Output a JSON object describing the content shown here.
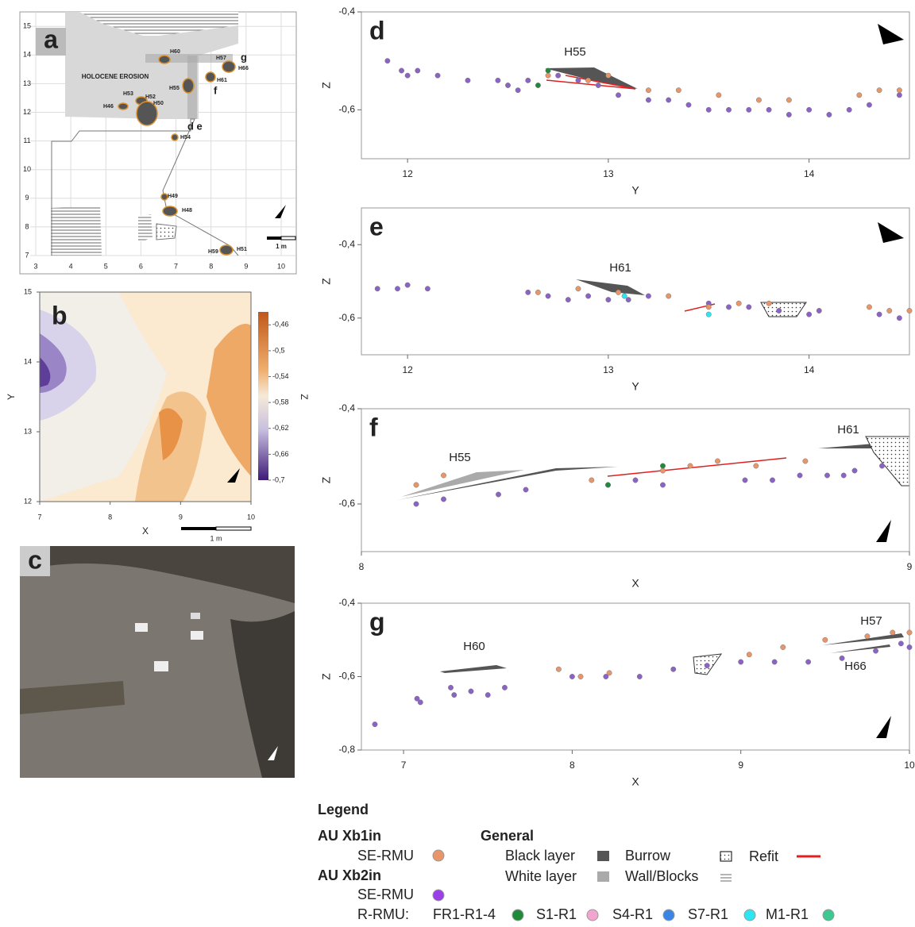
{
  "panel_a": {
    "label": "a",
    "xticks": [
      3,
      4,
      5,
      6,
      7,
      8,
      9,
      10
    ],
    "yticks": [
      7,
      8,
      9,
      10,
      11,
      12,
      13,
      14,
      15
    ],
    "erosion": "HOLOCENE EROSION",
    "features": [
      "H60",
      "H57",
      "H66",
      "H61",
      "H55",
      "H53",
      "H52",
      "H50",
      "H46",
      "H54",
      "H49",
      "H48",
      "H59",
      "H51"
    ],
    "sections": [
      "g",
      "f",
      "d e"
    ],
    "scale": "1 m"
  },
  "panel_b": {
    "label": "b",
    "xlabel": "X",
    "ylabel": "Y",
    "xticks": [
      7,
      8,
      9,
      10
    ],
    "yticks": [
      12,
      13,
      14,
      15
    ],
    "colorbar_label": "Z",
    "colorbar_lim": [
      -0.7,
      -0.44
    ],
    "colorbar_ticks": [
      {
        "value": -0.46,
        "label": "-0,46"
      },
      {
        "value": -0.5,
        "label": "-0,5"
      },
      {
        "value": -0.54,
        "label": "-0,54"
      },
      {
        "value": -0.58,
        "label": "-0,58"
      },
      {
        "value": -0.62,
        "label": "-0,62"
      },
      {
        "value": -0.66,
        "label": "-0,66"
      },
      {
        "value": -0.7,
        "label": "-0,7"
      }
    ],
    "scale": "1 m"
  },
  "panel_c": {
    "label": "c"
  },
  "chart_data": [
    {
      "type": "scatter",
      "panel": "d",
      "xlabel": "Y",
      "ylabel": "Z",
      "annotations": [
        "H55"
      ],
      "xlim": [
        11.77,
        14.5
      ],
      "ylim": [
        -0.7,
        -0.4
      ],
      "xticks": [
        12,
        13,
        14
      ],
      "yticks": [
        {
          "value": -0.4,
          "label": "-0,4"
        },
        {
          "value": -0.6,
          "label": "-0,6"
        }
      ],
      "series": [
        {
          "color": "#8a63c4",
          "x": [
            11.9,
            11.97,
            12.0,
            12.05,
            12.15,
            12.3,
            12.45,
            12.5,
            12.55,
            12.6,
            12.75,
            12.85,
            12.95,
            13.05,
            13.2,
            13.3,
            13.4,
            13.5,
            13.6,
            13.7,
            13.8,
            13.9,
            14.0,
            14.1,
            14.2,
            14.3,
            14.45
          ],
          "values": [
            -0.5,
            -0.52,
            -0.53,
            -0.52,
            -0.53,
            -0.54,
            -0.54,
            -0.55,
            -0.56,
            -0.54,
            -0.53,
            -0.54,
            -0.55,
            -0.57,
            -0.58,
            -0.58,
            -0.59,
            -0.6,
            -0.6,
            -0.6,
            -0.6,
            -0.61,
            -0.6,
            -0.61,
            -0.6,
            -0.59,
            -0.57
          ]
        },
        {
          "color": "#e8956a",
          "x": [
            12.7,
            12.9,
            13.0,
            13.2,
            13.35,
            13.55,
            13.75,
            13.9,
            14.25,
            14.35,
            14.45
          ],
          "values": [
            -0.53,
            -0.54,
            -0.53,
            -0.56,
            -0.56,
            -0.57,
            -0.58,
            -0.58,
            -0.57,
            -0.56,
            -0.56
          ]
        },
        {
          "color": "#1f8a3a",
          "x": [
            12.65,
            12.7
          ],
          "values": [
            -0.55,
            -0.52
          ]
        }
      ]
    },
    {
      "type": "scatter",
      "panel": "e",
      "xlabel": "Y",
      "ylabel": "Z",
      "annotations": [
        "H61"
      ],
      "xlim": [
        11.77,
        14.5
      ],
      "ylim": [
        -0.7,
        -0.3
      ],
      "xticks": [
        12,
        13,
        14
      ],
      "yticks": [
        {
          "value": -0.4,
          "label": "-0,4"
        },
        {
          "value": -0.6,
          "label": "-0,6"
        }
      ],
      "series": [
        {
          "color": "#8a63c4",
          "x": [
            11.85,
            11.95,
            12.0,
            12.1,
            12.6,
            12.7,
            12.8,
            12.9,
            13.0,
            13.1,
            13.2,
            13.5,
            13.6,
            13.7,
            13.85,
            14.0,
            14.05,
            14.35,
            14.45
          ],
          "values": [
            -0.52,
            -0.52,
            -0.51,
            -0.52,
            -0.53,
            -0.54,
            -0.55,
            -0.54,
            -0.55,
            -0.55,
            -0.54,
            -0.56,
            -0.57,
            -0.57,
            -0.58,
            -0.59,
            -0.58,
            -0.59,
            -0.6
          ]
        },
        {
          "color": "#e8956a",
          "x": [
            12.65,
            12.85,
            13.05,
            13.3,
            13.5,
            13.65,
            13.8,
            14.3,
            14.4,
            14.5
          ],
          "values": [
            -0.53,
            -0.52,
            -0.53,
            -0.54,
            -0.57,
            -0.56,
            -0.56,
            -0.57,
            -0.58,
            -0.58
          ]
        },
        {
          "color": "#2ee6f2",
          "x": [
            13.08,
            13.5
          ],
          "values": [
            -0.54,
            -0.59
          ]
        }
      ]
    },
    {
      "type": "scatter",
      "panel": "f",
      "xlabel": "X",
      "ylabel": "Z",
      "annotations": [
        "H55",
        "H61"
      ],
      "xlim": [
        8,
        9
      ],
      "ylim": [
        -0.7,
        -0.4
      ],
      "xticks": [
        8,
        9
      ],
      "yticks": [
        {
          "value": -0.4,
          "label": "-0,4"
        },
        {
          "value": -0.6,
          "label": "-0,6"
        }
      ],
      "series": [
        {
          "color": "#8a63c4",
          "x": [
            8.1,
            8.15,
            8.25,
            8.3,
            8.45,
            8.5,
            8.55,
            8.7,
            8.75,
            8.8,
            8.85,
            8.88,
            8.9,
            8.95
          ],
          "values": [
            -0.6,
            -0.59,
            -0.58,
            -0.57,
            -0.56,
            -0.55,
            -0.56,
            -0.55,
            -0.55,
            -0.54,
            -0.54,
            -0.54,
            -0.53,
            -0.52
          ]
        },
        {
          "color": "#e8956a",
          "x": [
            8.1,
            8.15,
            8.42,
            8.55,
            8.6,
            8.65,
            8.72,
            8.81
          ],
          "values": [
            -0.56,
            -0.54,
            -0.55,
            -0.53,
            -0.52,
            -0.51,
            -0.52,
            -0.51
          ]
        },
        {
          "color": "#1f8a3a",
          "x": [
            8.45,
            8.55
          ],
          "values": [
            -0.56,
            -0.52
          ]
        }
      ]
    },
    {
      "type": "scatter",
      "panel": "g",
      "xlabel": "X",
      "ylabel": "Z",
      "annotations": [
        "H60",
        "H57",
        "H66"
      ],
      "xlim": [
        6.75,
        10
      ],
      "ylim": [
        -0.8,
        -0.4
      ],
      "xticks": [
        7,
        8,
        9,
        10
      ],
      "yticks": [
        {
          "value": -0.4,
          "label": "-0,4"
        },
        {
          "value": -0.6,
          "label": "-0,6"
        },
        {
          "value": -0.8,
          "label": "-0,8"
        }
      ],
      "series": [
        {
          "color": "#8a63c4",
          "x": [
            6.83,
            7.08,
            7.1,
            7.28,
            7.3,
            7.4,
            7.5,
            7.6,
            8.0,
            8.2,
            8.4,
            8.6,
            8.8,
            9.0,
            9.2,
            9.4,
            9.6,
            9.8,
            9.95,
            10.0
          ],
          "values": [
            -0.73,
            -0.66,
            -0.67,
            -0.63,
            -0.65,
            -0.64,
            -0.65,
            -0.63,
            -0.6,
            -0.6,
            -0.6,
            -0.58,
            -0.57,
            -0.56,
            -0.56,
            -0.56,
            -0.55,
            -0.53,
            -0.51,
            -0.52
          ]
        },
        {
          "color": "#e8956a",
          "x": [
            7.92,
            8.05,
            8.22,
            9.05,
            9.25,
            9.5,
            9.75,
            9.9,
            10.0
          ],
          "values": [
            -0.58,
            -0.6,
            -0.59,
            -0.54,
            -0.52,
            -0.5,
            -0.49,
            -0.48,
            -0.48
          ]
        }
      ]
    }
  ],
  "legend": {
    "title": "Legend",
    "group1": "AU Xb1in",
    "group1_item": "SE-RMU",
    "group2": "AU Xb2in",
    "group2_item": "SE-RMU",
    "rrmu": "R-RMU:",
    "rrmu_items": [
      "FR1-R1-4",
      "S1-R1",
      "S4-R1",
      "S7-R1",
      "M1-R1"
    ],
    "general": "General",
    "general_items": [
      "Black layer",
      "Burrow",
      "Refit",
      "White layer",
      "Wall/Blocks"
    ]
  }
}
